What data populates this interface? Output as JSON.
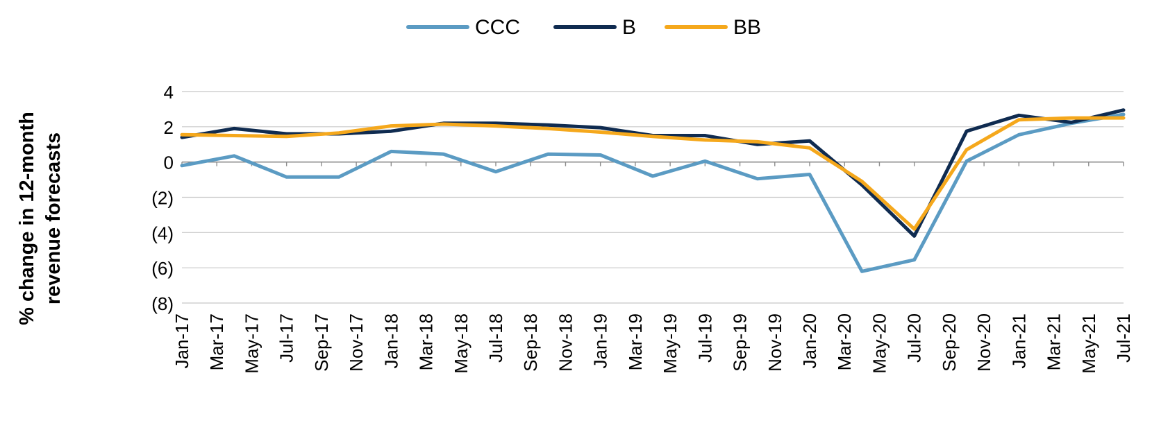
{
  "chart_data": {
    "type": "line",
    "title": "",
    "xlabel": "",
    "ylabel_lines": [
      "% change in 12-month",
      "revenue forecasts"
    ],
    "ylim": [
      -8,
      4
    ],
    "yticks": [
      4,
      2,
      0,
      -2,
      -4,
      -6,
      -8
    ],
    "ytick_labels": [
      "4",
      "2",
      "0",
      "(2)",
      "(4)",
      "(6)",
      "(8)"
    ],
    "x": [
      "Jan-17",
      "Feb-17",
      "Mar-17",
      "Apr-17",
      "May-17",
      "Jun-17",
      "Jul-17",
      "Aug-17",
      "Sep-17",
      "Oct-17",
      "Nov-17",
      "Dec-17",
      "Jan-18",
      "Feb-18",
      "Mar-18",
      "Apr-18",
      "May-18",
      "Jun-18",
      "Jul-18",
      "Aug-18",
      "Sep-18",
      "Oct-18",
      "Nov-18",
      "Dec-18",
      "Jan-19",
      "Feb-19",
      "Mar-19",
      "Apr-19",
      "May-19",
      "Jun-19",
      "Jul-19",
      "Aug-19",
      "Sep-19",
      "Oct-19",
      "Nov-19",
      "Dec-19",
      "Jan-20",
      "Feb-20",
      "Mar-20",
      "Apr-20",
      "May-20",
      "Jun-20",
      "Jul-20",
      "Aug-20",
      "Sep-20",
      "Oct-20",
      "Nov-20",
      "Dec-20",
      "Jan-21",
      "Feb-21",
      "Mar-21",
      "Apr-21",
      "May-21",
      "Jun-21",
      "Jul-21"
    ],
    "x_tick_labels": [
      "Jan-17",
      "Mar-17",
      "May-17",
      "Jul-17",
      "Sep-17",
      "Nov-17",
      "Jan-18",
      "Mar-18",
      "May-18",
      "Jul-18",
      "Sep-18",
      "Nov-18",
      "Jan-19",
      "Mar-19",
      "May-19",
      "Jul-19",
      "Sep-19",
      "Nov-19",
      "Jan-20",
      "Mar-20",
      "May-20",
      "Jul-20",
      "Sep-20",
      "Nov-20",
      "Jan-21",
      "Mar-21",
      "May-21",
      "Jul-21"
    ],
    "legend_position": "top-center",
    "grid": "horizontal",
    "series": [
      {
        "name": "CCC",
        "color": "#5b9bc3",
        "points": [
          [
            "Jan-17",
            -0.2
          ],
          [
            "Apr-17",
            0.35
          ],
          [
            "Jul-17",
            -0.85
          ],
          [
            "Oct-17",
            -0.85
          ],
          [
            "Jan-18",
            0.6
          ],
          [
            "Apr-18",
            0.45
          ],
          [
            "Jul-18",
            -0.55
          ],
          [
            "Oct-18",
            0.45
          ],
          [
            "Jan-19",
            0.4
          ],
          [
            "Apr-19",
            -0.8
          ],
          [
            "Jul-19",
            0.05
          ],
          [
            "Oct-19",
            -0.95
          ],
          [
            "Jan-20",
            -0.7
          ],
          [
            "Apr-20",
            -6.2
          ],
          [
            "Jul-20",
            -5.55
          ],
          [
            "Oct-20",
            0.05
          ],
          [
            "Jan-21",
            1.55
          ],
          [
            "Apr-21",
            2.2
          ],
          [
            "Jul-21",
            2.7
          ]
        ]
      },
      {
        "name": "B",
        "color": "#0f2b50",
        "points": [
          [
            "Jan-17",
            1.4
          ],
          [
            "Apr-17",
            1.9
          ],
          [
            "Jul-17",
            1.6
          ],
          [
            "Oct-17",
            1.6
          ],
          [
            "Jan-18",
            1.75
          ],
          [
            "Apr-18",
            2.2
          ],
          [
            "Jul-18",
            2.2
          ],
          [
            "Oct-18",
            2.1
          ],
          [
            "Jan-19",
            1.95
          ],
          [
            "Apr-19",
            1.5
          ],
          [
            "Jul-19",
            1.5
          ],
          [
            "Oct-19",
            1.0
          ],
          [
            "Jan-20",
            1.2
          ],
          [
            "Apr-20",
            -1.3
          ],
          [
            "Jul-20",
            -4.2
          ],
          [
            "Oct-20",
            1.75
          ],
          [
            "Jan-21",
            2.65
          ],
          [
            "Apr-21",
            2.25
          ],
          [
            "Jul-21",
            2.95
          ]
        ]
      },
      {
        "name": "BB",
        "color": "#f5a81c",
        "points": [
          [
            "Jan-17",
            1.55
          ],
          [
            "Apr-17",
            1.5
          ],
          [
            "Jul-17",
            1.45
          ],
          [
            "Oct-17",
            1.65
          ],
          [
            "Jan-18",
            2.05
          ],
          [
            "Apr-18",
            2.15
          ],
          [
            "Jul-18",
            2.05
          ],
          [
            "Oct-18",
            1.9
          ],
          [
            "Jan-19",
            1.7
          ],
          [
            "Apr-19",
            1.45
          ],
          [
            "Jul-19",
            1.25
          ],
          [
            "Oct-19",
            1.15
          ],
          [
            "Jan-20",
            0.8
          ],
          [
            "Apr-20",
            -1.1
          ],
          [
            "Jul-20",
            -3.8
          ],
          [
            "Oct-20",
            0.7
          ],
          [
            "Jan-21",
            2.4
          ],
          [
            "Apr-21",
            2.5
          ],
          [
            "Jul-21",
            2.5
          ]
        ]
      }
    ]
  }
}
